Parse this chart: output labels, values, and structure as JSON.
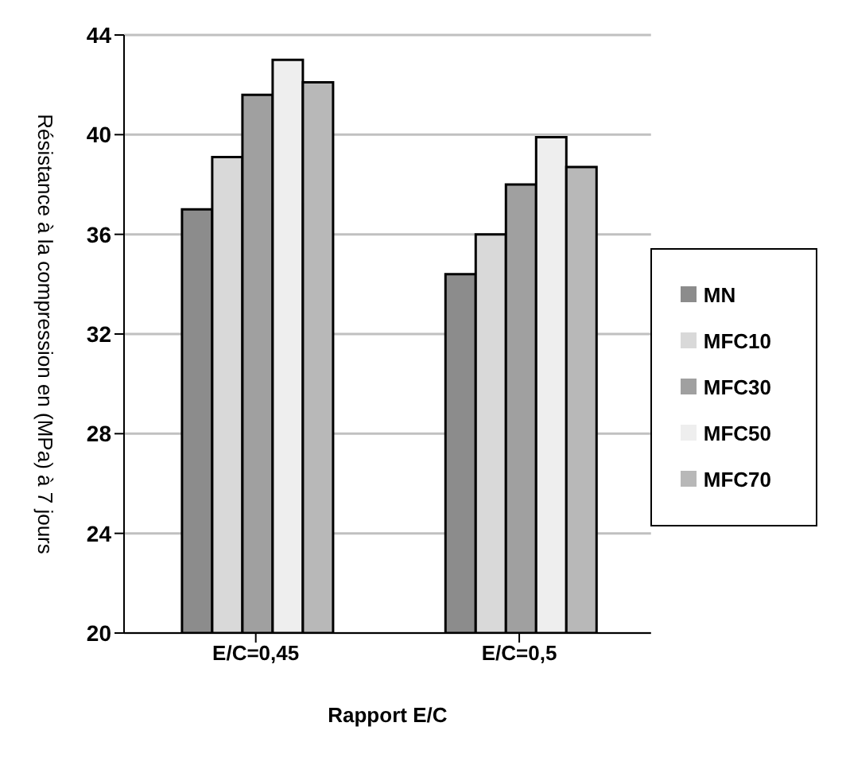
{
  "chart_data": {
    "type": "bar",
    "xlabel": "Rapport E/C",
    "ylabel": "Résistance à la compression en (MPa) à 7 jours",
    "categories": [
      "E/C=0,45",
      "E/C=0,5"
    ],
    "series": [
      {
        "name": "MN",
        "color": "#8c8c8c",
        "values": [
          37.0,
          34.4
        ]
      },
      {
        "name": "MFC10",
        "color": "#d9d9d9",
        "values": [
          39.1,
          36.0
        ]
      },
      {
        "name": "MFC30",
        "color": "#a0a0a0",
        "values": [
          41.6,
          38.0
        ]
      },
      {
        "name": "MFC50",
        "color": "#eeeeee",
        "values": [
          43.0,
          39.9
        ]
      },
      {
        "name": "MFC70",
        "color": "#b8b8b8",
        "values": [
          42.1,
          38.7
        ]
      }
    ],
    "ylim": [
      20,
      44
    ],
    "yticks": [
      20,
      24,
      28,
      32,
      36,
      40,
      44
    ],
    "grid": "y",
    "legend": "right"
  }
}
